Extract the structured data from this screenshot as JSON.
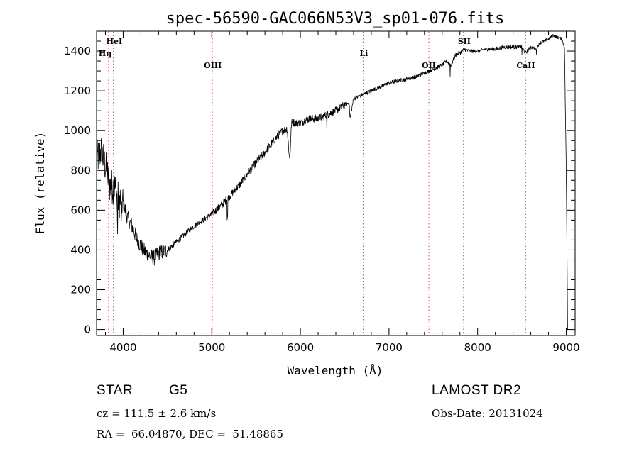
{
  "chart_data": {
    "type": "line",
    "title": "spec-56590-GAC066N53V3_sp01-076.fits",
    "xlabel": "Wavelength (Å)",
    "ylabel": "Flux (relative)",
    "xlim": [
      3700,
      9100
    ],
    "ylim": [
      -30,
      1500
    ],
    "xticks": [
      4000,
      5000,
      6000,
      7000,
      8000,
      9000
    ],
    "yticks": [
      0,
      200,
      400,
      600,
      800,
      1000,
      1200,
      1400
    ],
    "grid": false,
    "series": [
      {
        "color": "#000000",
        "x": [
          3700,
          3750,
          3800,
          3850,
          3900,
          3950,
          4000,
          4050,
          4100,
          4150,
          4200,
          4250,
          4300,
          4350,
          4400,
          4450,
          4500,
          4600,
          4700,
          4800,
          4900,
          5000,
          5100,
          5200,
          5300,
          5400,
          5500,
          5600,
          5700,
          5800,
          5850,
          5880,
          5900,
          5950,
          6000,
          6100,
          6200,
          6300,
          6400,
          6500,
          6550,
          6560,
          6600,
          6700,
          6800,
          6900,
          7000,
          7100,
          7200,
          7300,
          7400,
          7500,
          7600,
          7650,
          7700,
          7750,
          7800,
          7850,
          7900,
          8000,
          8100,
          8200,
          8300,
          8400,
          8500,
          8540,
          8600,
          8660,
          8700,
          8800,
          8850,
          8900,
          8950,
          8980,
          9000
        ],
        "y": [
          850,
          900,
          820,
          720,
          720,
          650,
          640,
          560,
          520,
          460,
          420,
          390,
          370,
          360,
          385,
          390,
          400,
          440,
          480,
          520,
          550,
          580,
          620,
          670,
          720,
          780,
          840,
          890,
          950,
          1000,
          1010,
          850,
          1040,
          1040,
          1040,
          1060,
          1060,
          1080,
          1100,
          1130,
          1140,
          1060,
          1160,
          1180,
          1200,
          1220,
          1240,
          1250,
          1260,
          1270,
          1290,
          1310,
          1330,
          1350,
          1330,
          1380,
          1390,
          1410,
          1400,
          1400,
          1410,
          1410,
          1420,
          1420,
          1420,
          1390,
          1420,
          1410,
          1440,
          1460,
          1480,
          1470,
          1460,
          1420,
          800
        ]
      }
    ],
    "spectral_lines": [
      {
        "name": "HeI",
        "wavelength": 3889
      },
      {
        "name": "Hη",
        "wavelength": 3835
      },
      {
        "name": "OIII",
        "wavelength": 5007
      },
      {
        "name": "Li",
        "wavelength": 6708
      },
      {
        "name": "OII",
        "wavelength": 7450
      },
      {
        "name": "SII",
        "wavelength": 7840
      },
      {
        "name": "CaII",
        "wavelength": 8542
      }
    ]
  },
  "info": {
    "object_class": "STAR",
    "subclass": "G5",
    "survey": "LAMOST DR2",
    "cz": "cz = 111.5 ± 2.6 km/s",
    "obs_date": "Obs-Date: 20131024",
    "coords": "RA =  66.04870, DEC =  51.48865"
  }
}
